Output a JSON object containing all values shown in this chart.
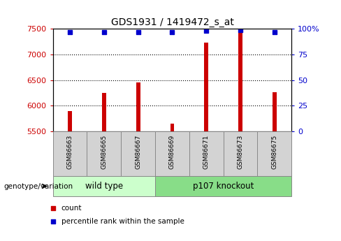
{
  "title": "GDS1931 / 1419472_s_at",
  "samples": [
    "GSM86663",
    "GSM86665",
    "GSM86667",
    "GSM86669",
    "GSM86671",
    "GSM86673",
    "GSM86675"
  ],
  "counts": [
    5890,
    6250,
    6450,
    5650,
    7230,
    7480,
    6270
  ],
  "percentile_ranks": [
    97,
    97,
    97,
    97,
    98,
    99,
    97
  ],
  "y_min": 5500,
  "y_max": 7500,
  "y_ticks": [
    5500,
    6000,
    6500,
    7000,
    7500
  ],
  "y_right_ticks": [
    0,
    25,
    50,
    75,
    100
  ],
  "bar_color": "#cc0000",
  "dot_color": "#0000cc",
  "group1_label": "wild type",
  "group2_label": "p107 knockout",
  "group1_indices": [
    0,
    1,
    2
  ],
  "group2_indices": [
    3,
    4,
    5,
    6
  ],
  "group1_color": "#ccffcc",
  "group2_color": "#88dd88",
  "tick_label_color_left": "#cc0000",
  "tick_label_color_right": "#0000cc",
  "genotype_label": "genotype/variation",
  "legend_count_label": "count",
  "legend_percentile_label": "percentile rank within the sample",
  "dot_size": 18,
  "bar_width": 0.12,
  "grid_color": "black"
}
